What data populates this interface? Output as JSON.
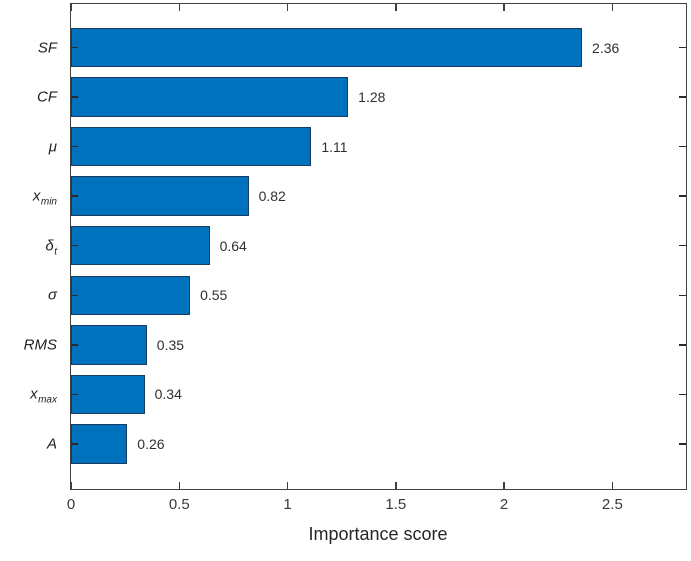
{
  "figure": {
    "background": "#ffffff"
  },
  "chart_data": {
    "type": "bar",
    "orientation": "horizontal",
    "title": "",
    "xlabel": "Importance score",
    "ylabel": "",
    "categories": [
      {
        "text": "SF",
        "sub": ""
      },
      {
        "text": "CF",
        "sub": ""
      },
      {
        "text": "μ",
        "sub": ""
      },
      {
        "text": "x",
        "sub": "min"
      },
      {
        "text": "δ",
        "sub": "t"
      },
      {
        "text": "σ",
        "sub": ""
      },
      {
        "text": "RMS",
        "sub": ""
      },
      {
        "text": "x",
        "sub": "max"
      },
      {
        "text": "A",
        "sub": ""
      }
    ],
    "values": [
      2.36,
      1.28,
      1.11,
      0.82,
      0.64,
      0.55,
      0.35,
      0.34,
      0.26
    ],
    "value_labels": [
      "2.36",
      "1.28",
      "1.11",
      "0.82",
      "0.64",
      "0.55",
      "0.35",
      "0.34",
      "0.26"
    ],
    "xlim": [
      0,
      2.84
    ],
    "xticks": [
      0,
      0.5,
      1,
      1.5,
      2,
      2.5
    ],
    "xtick_labels": [
      "0",
      "0.5",
      "1",
      "1.5",
      "2",
      "2.5"
    ],
    "grid": false,
    "legend": null,
    "bar_color": "#0072bd",
    "bar_edge_color": "#1a3a5e",
    "axis_color": "#404040",
    "box": true
  }
}
